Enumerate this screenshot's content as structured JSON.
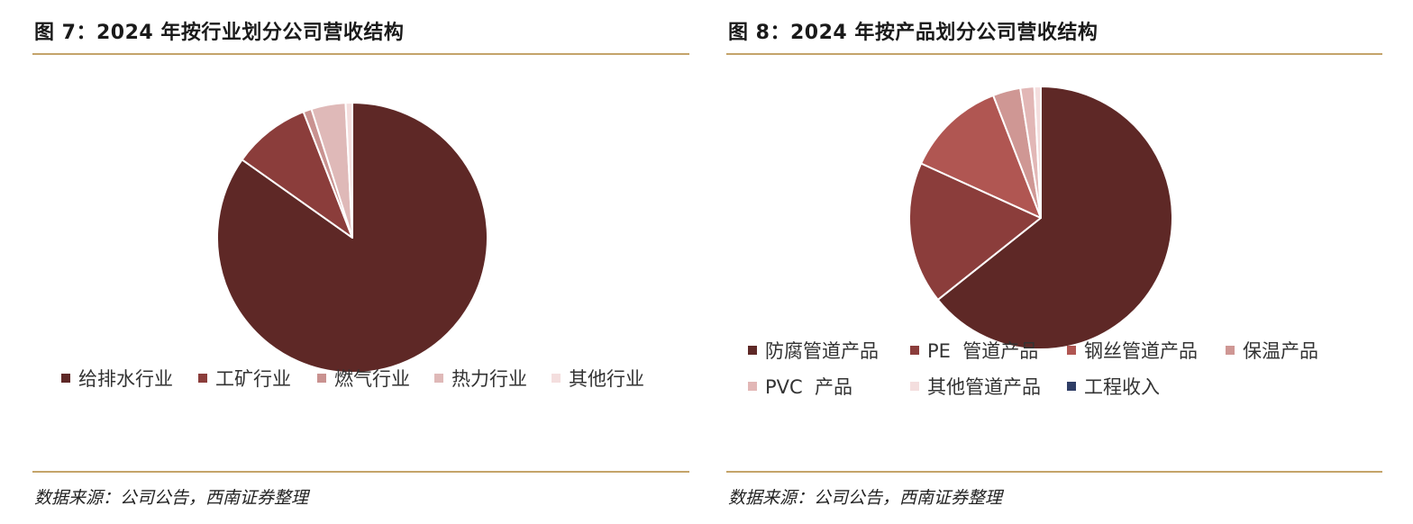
{
  "figures": [
    {
      "title": "图 7：2024 年按行业划分公司营收结构",
      "source": "数据来源：公司公告，西南证券整理"
    },
    {
      "title": "图 8：2024 年按产品划分公司营收结构",
      "source": "数据来源：公司公告，西南证券整理"
    }
  ],
  "chart_data": [
    {
      "type": "pie",
      "title": "图 7：2024 年按行业划分公司营收结构",
      "start_angle_deg": 0,
      "direction": "clockwise",
      "legend_position": "bottom",
      "slices": [
        {
          "label": "给排水行业",
          "value": 84.8,
          "color": "#5e2826"
        },
        {
          "label": "工矿行业",
          "value": 9.3,
          "color": "#8b3d3b"
        },
        {
          "label": "燃气行业",
          "value": 1.0,
          "color": "#c99290"
        },
        {
          "label": "热力行业",
          "value": 4.1,
          "color": "#dfb9b8"
        },
        {
          "label": "其他行业",
          "value": 0.8,
          "color": "#f4dede"
        }
      ]
    },
    {
      "type": "pie",
      "title": "图 8：2024 年按产品划分公司营收结构",
      "start_angle_deg": 0,
      "direction": "clockwise",
      "legend_position": "bottom",
      "slices": [
        {
          "label": "防腐管道产品",
          "value": 64.3,
          "color": "#5e2826"
        },
        {
          "label": "PE  管道产品",
          "value": 17.5,
          "color": "#8b3d3b"
        },
        {
          "label": "钢丝管道产品",
          "value": 12.3,
          "color": "#b05652"
        },
        {
          "label": "保温产品",
          "value": 3.4,
          "color": "#cf9794"
        },
        {
          "label": "PVC  产品",
          "value": 1.7,
          "color": "#e2b7b6"
        },
        {
          "label": "其他管道产品",
          "value": 0.8,
          "color": "#f4dede"
        },
        {
          "label": "工程收入",
          "value": 0.0,
          "color": "#2f3e66"
        }
      ]
    }
  ]
}
